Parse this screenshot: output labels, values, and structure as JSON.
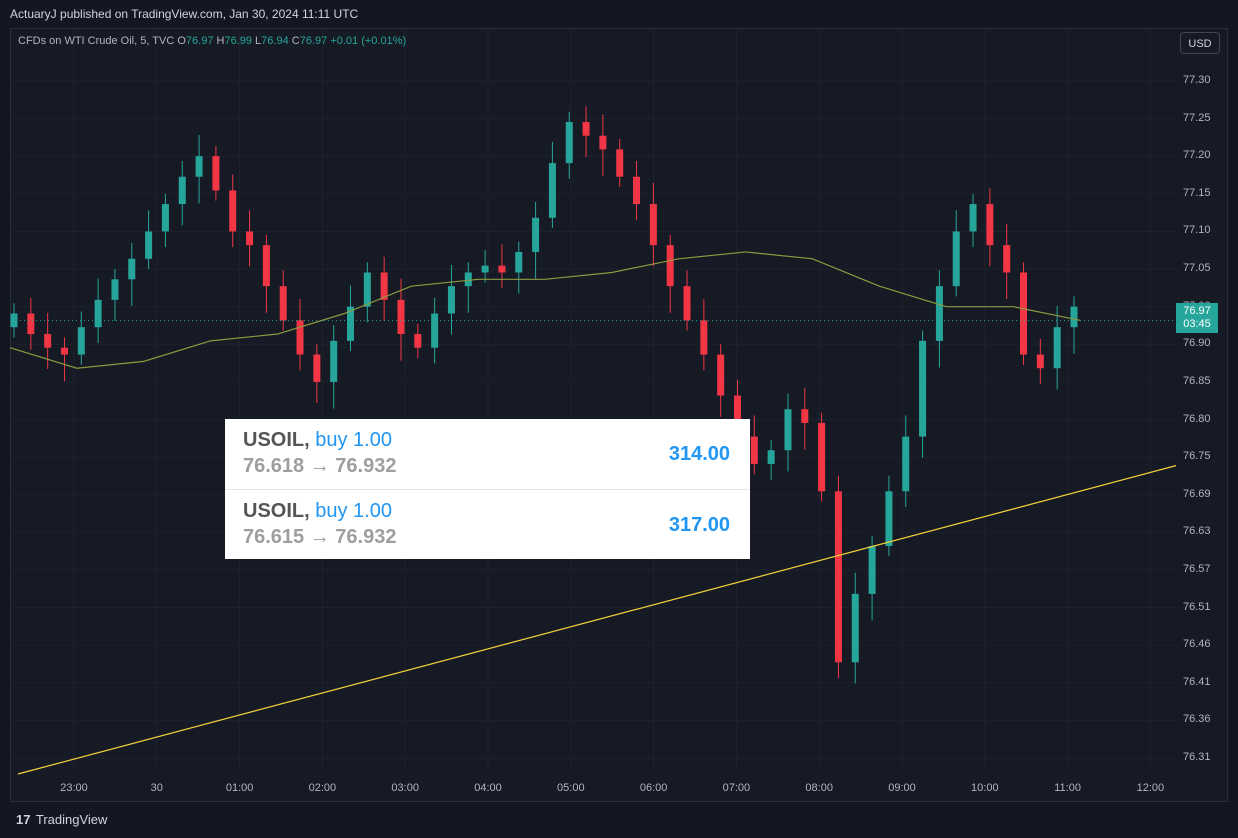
{
  "header": {
    "published": "ActuaryJ published on TradingView.com, Jan 30, 2024 11:11 UTC"
  },
  "legend": {
    "instrument": "CFDs on WTI Crude Oil, 5, TVC",
    "o_label": "O",
    "o": "76.97",
    "h_label": "H",
    "h": "76.99",
    "l_label": "L",
    "l": "76.94",
    "c_label": "C",
    "c": "76.97",
    "change": "+0.01 (+0.01%)"
  },
  "currency_button": "USD",
  "price_tag": {
    "price": "76.97",
    "countdown": "03:45"
  },
  "trades": [
    {
      "symbol": "USOIL,",
      "side": "buy 1.00",
      "prices": "76.618 → 76.932",
      "pnl": "314.00"
    },
    {
      "symbol": "USOIL,",
      "side": "buy 1.00",
      "prices": "76.615 → 76.932",
      "pnl": "317.00"
    }
  ],
  "branding": {
    "logo": "17",
    "name": "TradingView"
  },
  "colors": {
    "up": "#26a69a",
    "down": "#f23645",
    "ma": "#8c9b3e",
    "trendline": "#f5d33a",
    "background": "#131722"
  },
  "chart_data": {
    "type": "candlestick",
    "interval": "5",
    "y_ticks": [
      "77.30",
      "77.25",
      "77.20",
      "77.15",
      "77.10",
      "77.05",
      "77.00",
      "76.90",
      "76.85",
      "76.80",
      "76.75",
      "76.69",
      "76.63",
      "76.57",
      "76.51",
      "76.46",
      "76.41",
      "76.36",
      "76.31"
    ],
    "x_ticks": [
      "23:00",
      "30",
      "01:00",
      "02:00",
      "03:00",
      "04:00",
      "05:00",
      "06:00",
      "07:00",
      "08:00",
      "09:00",
      "10:00",
      "11:00",
      "12:00"
    ],
    "candles_approx_close": [
      76.96,
      76.93,
      76.91,
      76.9,
      76.94,
      76.98,
      77.01,
      77.04,
      77.08,
      77.12,
      77.16,
      77.19,
      77.14,
      77.08,
      77.06,
      77.0,
      76.95,
      76.9,
      76.86,
      76.92,
      76.97,
      77.02,
      76.98,
      76.93,
      76.91,
      76.96,
      77.0,
      77.02,
      77.03,
      77.02,
      77.05,
      77.1,
      77.18,
      77.24,
      77.22,
      77.2,
      77.16,
      77.12,
      77.06,
      77.0,
      76.95,
      76.9,
      76.84,
      76.78,
      76.74,
      76.76,
      76.82,
      76.8,
      76.7,
      76.45,
      76.55,
      76.62,
      76.7,
      76.78,
      76.92,
      77.0,
      77.08,
      77.12,
      77.06,
      77.02,
      76.9,
      76.88,
      76.94,
      76.97
    ],
    "moving_average_approx": [
      76.91,
      76.88,
      76.89,
      76.92,
      76.93,
      76.96,
      77.0,
      77.01,
      77.01,
      77.02,
      77.04,
      77.05,
      77.04,
      77.0,
      76.97,
      76.97,
      76.95
    ],
    "trendline": {
      "from": [
        "22:45",
        76.31
      ],
      "to": [
        "12:15",
        76.72
      ]
    },
    "last_price": 76.97
  }
}
